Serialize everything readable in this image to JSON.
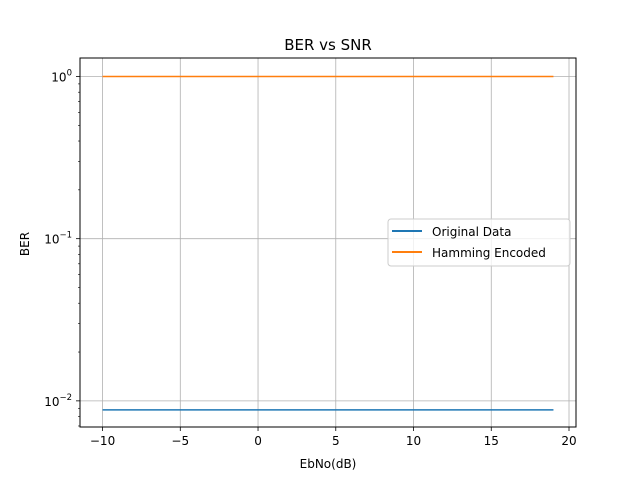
{
  "chart_data": {
    "type": "line",
    "title": "BER vs SNR",
    "xlabel": "EbNo(dB)",
    "ylabel": "BER",
    "xlim": [
      -11.45,
      20.45
    ],
    "ylim": [
      0.0069,
      1.3
    ],
    "yscale": "log",
    "grid": true,
    "legend_position": "center-right",
    "x_ticks": [
      {
        "value": -10,
        "label": "−10"
      },
      {
        "value": -5,
        "label": "−5"
      },
      {
        "value": 0,
        "label": "0"
      },
      {
        "value": 5,
        "label": "5"
      },
      {
        "value": 10,
        "label": "10"
      },
      {
        "value": 15,
        "label": "15"
      },
      {
        "value": 20,
        "label": "20"
      }
    ],
    "y_ticks": [
      {
        "value": 1,
        "base": "10",
        "exp": "0"
      },
      {
        "value": 0.1,
        "base": "10",
        "exp": "−1"
      },
      {
        "value": 0.01,
        "base": "10",
        "exp": "−2"
      }
    ],
    "series": [
      {
        "name": "Original Data",
        "color": "#1f77b4",
        "x": [
          -10,
          -9,
          -8,
          -7,
          -6,
          -5,
          -4,
          -3,
          -2,
          -1,
          0,
          1,
          2,
          3,
          4,
          5,
          6,
          7,
          8,
          9,
          10,
          11,
          12,
          13,
          14,
          15,
          16,
          17,
          18,
          19
        ],
        "y": [
          0.0088,
          0.0088,
          0.0088,
          0.0088,
          0.0088,
          0.0088,
          0.0088,
          0.0088,
          0.0088,
          0.0088,
          0.0088,
          0.0088,
          0.0088,
          0.0088,
          0.0088,
          0.0088,
          0.0088,
          0.0088,
          0.0088,
          0.0088,
          0.0088,
          0.0088,
          0.0088,
          0.0088,
          0.0088,
          0.0088,
          0.0088,
          0.0088,
          0.0088,
          0.0088
        ]
      },
      {
        "name": "Hamming Encoded",
        "color": "#ff7f0e",
        "x": [
          -10,
          -9,
          -8,
          -7,
          -6,
          -5,
          -4,
          -3,
          -2,
          -1,
          0,
          1,
          2,
          3,
          4,
          5,
          6,
          7,
          8,
          9,
          10,
          11,
          12,
          13,
          14,
          15,
          16,
          17,
          18,
          19
        ],
        "y": [
          1.0,
          1.0,
          1.0,
          1.0,
          1.0,
          1.0,
          1.0,
          1.0,
          1.0,
          1.0,
          1.0,
          1.0,
          1.0,
          1.0,
          1.0,
          1.0,
          1.0,
          1.0,
          1.0,
          1.0,
          1.0,
          1.0,
          1.0,
          1.0,
          1.0,
          1.0,
          1.0,
          1.0,
          1.0,
          1.0
        ]
      }
    ]
  }
}
